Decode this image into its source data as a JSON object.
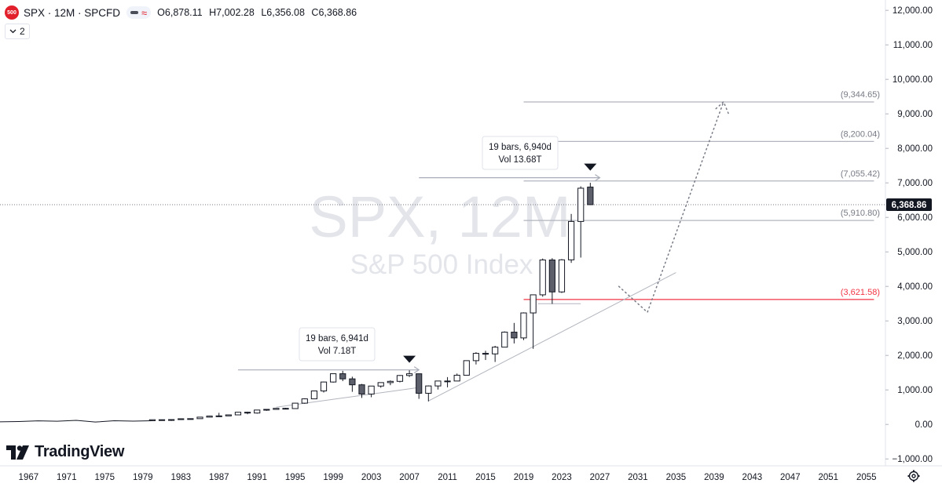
{
  "header": {
    "logo_text": "500",
    "symbol": "SPX · 12M · SPCFD",
    "ohlc": {
      "o_label": "O",
      "o": "6,878.11",
      "h_label": "H",
      "h": "7,002.28",
      "l_label": "L",
      "l": "6,356.08",
      "c_label": "C",
      "c": "6,368.86"
    }
  },
  "indicator_toggle": {
    "icon": "chevron-down-icon",
    "count": "2"
  },
  "watermark": {
    "title": "SPX, 12M",
    "subtitle": "S&P 500 Index"
  },
  "brand": {
    "name": "TradingView"
  },
  "colors": {
    "up_fill": "#ffffff",
    "down_fill": "#5d606b",
    "candle_border": "#131722",
    "red_level": "#f23645",
    "grey_line": "#b2b5be",
    "label_grey": "#787b86"
  },
  "chart_data": {
    "type": "candlestick",
    "title": "SPX, 12M",
    "subtitle": "S&P 500 Index",
    "ylim": [
      -1200,
      12300
    ],
    "xlim": [
      1964.0,
      2057.0
    ],
    "y_ticks": [
      "12,000.00",
      "11,000.00",
      "10,000.00",
      "9,000.00",
      "8,000.00",
      "7,000.00",
      "6,000.00",
      "5,000.00",
      "4,000.00",
      "3,000.00",
      "2,000.00",
      "1,000.00",
      "0.00",
      "−1,000.00"
    ],
    "y_tick_values": [
      12000,
      11000,
      10000,
      9000,
      8000,
      7000,
      6000,
      5000,
      4000,
      3000,
      2000,
      1000,
      0,
      -1000
    ],
    "x_ticks": [
      "1967",
      "1971",
      "1975",
      "1979",
      "1983",
      "1987",
      "1991",
      "1995",
      "1999",
      "2003",
      "2007",
      "2011",
      "2015",
      "2019",
      "2023",
      "2027",
      "2031",
      "2035",
      "2039",
      "2043",
      "2047",
      "2051",
      "2055"
    ],
    "x_tick_values": [
      1967,
      1971,
      1975,
      1979,
      1983,
      1987,
      1991,
      1995,
      1999,
      2003,
      2007,
      2011,
      2015,
      2019,
      2023,
      2027,
      2031,
      2035,
      2039,
      2043,
      2047,
      2051,
      2055
    ],
    "candles": [
      {
        "x": 1980,
        "o": 108,
        "h": 140,
        "l": 98,
        "c": 136
      },
      {
        "x": 1981,
        "o": 136,
        "h": 138,
        "l": 112,
        "c": 122
      },
      {
        "x": 1982,
        "o": 122,
        "h": 143,
        "l": 102,
        "c": 140
      },
      {
        "x": 1983,
        "o": 140,
        "h": 172,
        "l": 138,
        "c": 164
      },
      {
        "x": 1984,
        "o": 164,
        "h": 170,
        "l": 147,
        "c": 167
      },
      {
        "x": 1985,
        "o": 167,
        "h": 212,
        "l": 163,
        "c": 211
      },
      {
        "x": 1986,
        "o": 211,
        "h": 254,
        "l": 203,
        "c": 242
      },
      {
        "x": 1987,
        "o": 242,
        "h": 336,
        "l": 216,
        "c": 247
      },
      {
        "x": 1988,
        "o": 247,
        "h": 284,
        "l": 243,
        "c": 277
      },
      {
        "x": 1989,
        "o": 277,
        "h": 360,
        "l": 275,
        "c": 353
      },
      {
        "x": 1990,
        "o": 353,
        "h": 369,
        "l": 295,
        "c": 330
      },
      {
        "x": 1991,
        "o": 330,
        "h": 418,
        "l": 311,
        "c": 417
      },
      {
        "x": 1992,
        "o": 417,
        "h": 442,
        "l": 394,
        "c": 436
      },
      {
        "x": 1993,
        "o": 436,
        "h": 471,
        "l": 426,
        "c": 466
      },
      {
        "x": 1994,
        "o": 466,
        "h": 482,
        "l": 436,
        "c": 459
      },
      {
        "x": 1995,
        "o": 459,
        "h": 622,
        "l": 457,
        "c": 616
      },
      {
        "x": 1996,
        "o": 616,
        "h": 757,
        "l": 598,
        "c": 741
      },
      {
        "x": 1997,
        "o": 741,
        "h": 983,
        "l": 737,
        "c": 970
      },
      {
        "x": 1998,
        "o": 970,
        "h": 1241,
        "l": 924,
        "c": 1229
      },
      {
        "x": 1999,
        "o": 1229,
        "h": 1470,
        "l": 1212,
        "c": 1469
      },
      {
        "x": 2000,
        "o": 1469,
        "h": 1553,
        "l": 1254,
        "c": 1320
      },
      {
        "x": 2001,
        "o": 1320,
        "h": 1383,
        "l": 945,
        "c": 1148
      },
      {
        "x": 2002,
        "o": 1148,
        "h": 1173,
        "l": 768,
        "c": 880
      },
      {
        "x": 2003,
        "o": 880,
        "h": 1112,
        "l": 788,
        "c": 1112
      },
      {
        "x": 2004,
        "o": 1112,
        "h": 1217,
        "l": 1063,
        "c": 1212
      },
      {
        "x": 2005,
        "o": 1212,
        "h": 1275,
        "l": 1137,
        "c": 1248
      },
      {
        "x": 2006,
        "o": 1248,
        "h": 1431,
        "l": 1219,
        "c": 1418
      },
      {
        "x": 2007,
        "o": 1418,
        "h": 1576,
        "l": 1374,
        "c": 1468
      },
      {
        "x": 2008,
        "o": 1468,
        "h": 1471,
        "l": 741,
        "c": 903
      },
      {
        "x": 2009,
        "o": 903,
        "h": 1130,
        "l": 667,
        "c": 1115
      },
      {
        "x": 2010,
        "o": 1115,
        "h": 1262,
        "l": 1011,
        "c": 1258
      },
      {
        "x": 2011,
        "o": 1258,
        "h": 1371,
        "l": 1075,
        "c": 1258
      },
      {
        "x": 2012,
        "o": 1258,
        "h": 1474,
        "l": 1258,
        "c": 1426
      },
      {
        "x": 2013,
        "o": 1426,
        "h": 1849,
        "l": 1426,
        "c": 1848
      },
      {
        "x": 2014,
        "o": 1848,
        "h": 2093,
        "l": 1738,
        "c": 2059
      },
      {
        "x": 2015,
        "o": 2059,
        "h": 2134,
        "l": 1867,
        "c": 2044
      },
      {
        "x": 2016,
        "o": 2044,
        "h": 2277,
        "l": 1810,
        "c": 2239
      },
      {
        "x": 2017,
        "o": 2239,
        "h": 2695,
        "l": 2233,
        "c": 2674
      },
      {
        "x": 2018,
        "o": 2674,
        "h": 2941,
        "l": 2347,
        "c": 2507
      },
      {
        "x": 2019,
        "o": 2507,
        "h": 3247,
        "l": 2444,
        "c": 3231
      },
      {
        "x": 2020,
        "o": 3231,
        "h": 3760,
        "l": 2192,
        "c": 3756
      },
      {
        "x": 2021,
        "o": 3756,
        "h": 4808,
        "l": 3700,
        "c": 4766
      },
      {
        "x": 2022,
        "o": 4766,
        "h": 4818,
        "l": 3492,
        "c": 3840
      },
      {
        "x": 2023,
        "o": 3840,
        "h": 4793,
        "l": 3809,
        "c": 4770
      },
      {
        "x": 2024,
        "o": 4770,
        "h": 6100,
        "l": 4682,
        "c": 5882
      },
      {
        "x": 2025,
        "o": 5882,
        "h": 6900,
        "l": 4835,
        "c": 6846
      },
      {
        "x": 2026,
        "o": 6878.11,
        "h": 7002.28,
        "l": 6356.08,
        "c": 6368.86
      }
    ],
    "pre_series": {
      "style": "flat line for early years",
      "x": [
        1964,
        1966,
        1968,
        1970,
        1972,
        1974,
        1976,
        1978,
        1980
      ],
      "y": [
        75,
        85,
        103,
        92,
        118,
        69,
        107,
        96,
        108
      ]
    },
    "levels": [
      {
        "label": "(9,344.65)",
        "value": 9344.65,
        "color": "grey"
      },
      {
        "label": "(8,200.04)",
        "value": 8200.04,
        "color": "grey"
      },
      {
        "label": "(7,055.42)",
        "value": 7055.42,
        "color": "grey"
      },
      {
        "label": "(5,910.80)",
        "value": 5910.8,
        "color": "grey"
      },
      {
        "label": "(3,621.58)",
        "value": 3621.58,
        "color": "red"
      }
    ],
    "last_price": {
      "label": "6,368.86",
      "value": 6368.86
    },
    "measurements": [
      {
        "line1": "19 bars, 6,941d",
        "line2": "Vol 7.18T",
        "from_x": 1989,
        "to_x": 2008,
        "y": 1580,
        "marker_x": 2007
      },
      {
        "line1": "19 bars, 6,940d",
        "line2": "Vol 13.68T",
        "from_x": 2008,
        "to_x": 2027,
        "y": 7150,
        "marker_x": 2026
      }
    ],
    "trendlines": [
      {
        "x1": 1993,
        "y1": 500,
        "x2": 2008,
        "y2": 1070
      },
      {
        "x1": 2009,
        "y1": 680,
        "x2": 2035,
        "y2": 4400
      }
    ],
    "projection": [
      {
        "x": 2029,
        "y": 4000
      },
      {
        "x": 2032,
        "y": 3250
      },
      {
        "x": 2040,
        "y": 9350
      },
      {
        "x": 2039.5,
        "y": 9200
      },
      {
        "x": 2040.5,
        "y": 9000
      }
    ]
  }
}
